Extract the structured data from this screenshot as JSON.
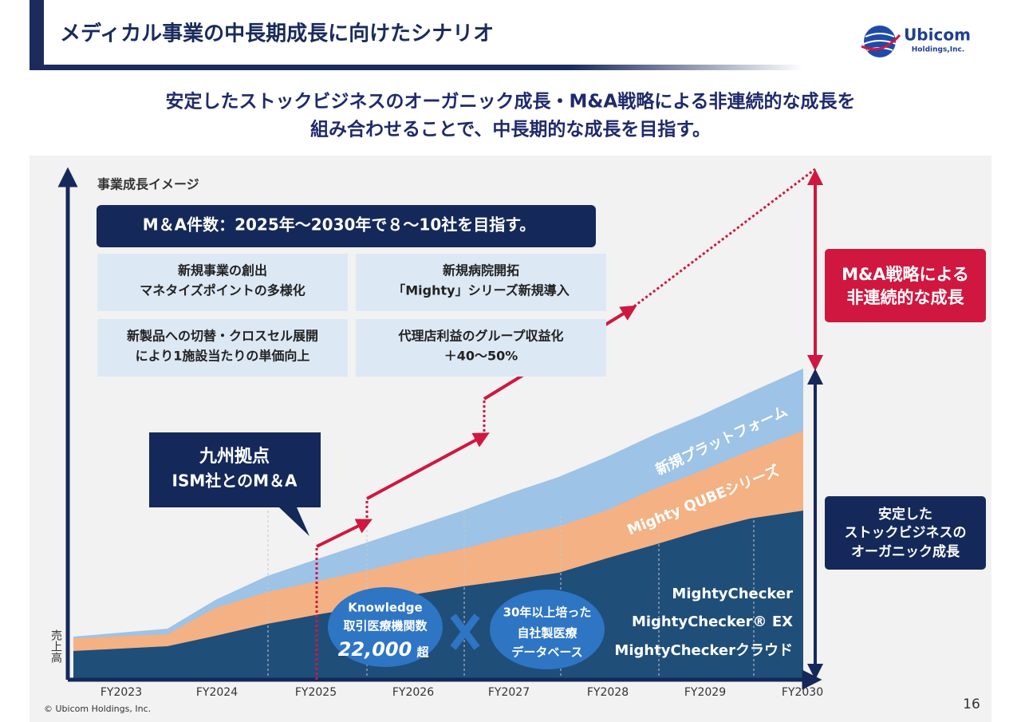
{
  "header": {
    "title": "メディカル事業の中長期成長に向けたシナリオ",
    "logo": {
      "name": "Ubicom",
      "sub": "Holdings,Inc."
    }
  },
  "subtitle": [
    "安定したストックビジネスのオーガニック成長・M&A戦略による非連続的な成長を",
    "組み合わせることで、中長期的な成長を目指す。"
  ],
  "chart": {
    "caption": "事業成長イメージ",
    "y_label": "売上高",
    "x_labels": [
      "FY2023",
      "FY2024",
      "FY2025",
      "FY2026",
      "FY2027",
      "FY2028",
      "FY2029",
      "FY2030"
    ],
    "target": "M＆A件数：2025年～2030年で８～10社を目指す。",
    "boxes": [
      [
        "新規事業の創出",
        "マネタイズポイントの多様化"
      ],
      [
        "新規病院開拓",
        "「Mighty」シリーズ新規導入"
      ],
      [
        "新製品への切替・クロスセル展開",
        "により1施設当たりの単価向上"
      ],
      [
        "代理店利益のグループ収益化",
        "＋40～50%"
      ]
    ],
    "callout": [
      "九州拠点",
      "ISM社とのM＆A"
    ],
    "layers": [
      "新規プラットフォーム",
      "Mighty QUBEシリーズ"
    ],
    "products": [
      "MightyChecker",
      "MightyChecker® EX",
      "MightyCheckerクラウド"
    ],
    "knowledge": [
      "Knowledge",
      "取引医療機関数",
      "22,000",
      "超"
    ],
    "database": [
      "30年以上培った",
      "自社製医療",
      "データベース"
    ],
    "ma_box": [
      "M&A戦略による",
      "非連続的な成長"
    ],
    "stock_box": [
      "安定した",
      "ストックビジネスの",
      "オーガニック成長"
    ]
  },
  "footer": {
    "copyright": "© Ubicom Holdings, Inc.",
    "page": "16"
  }
}
